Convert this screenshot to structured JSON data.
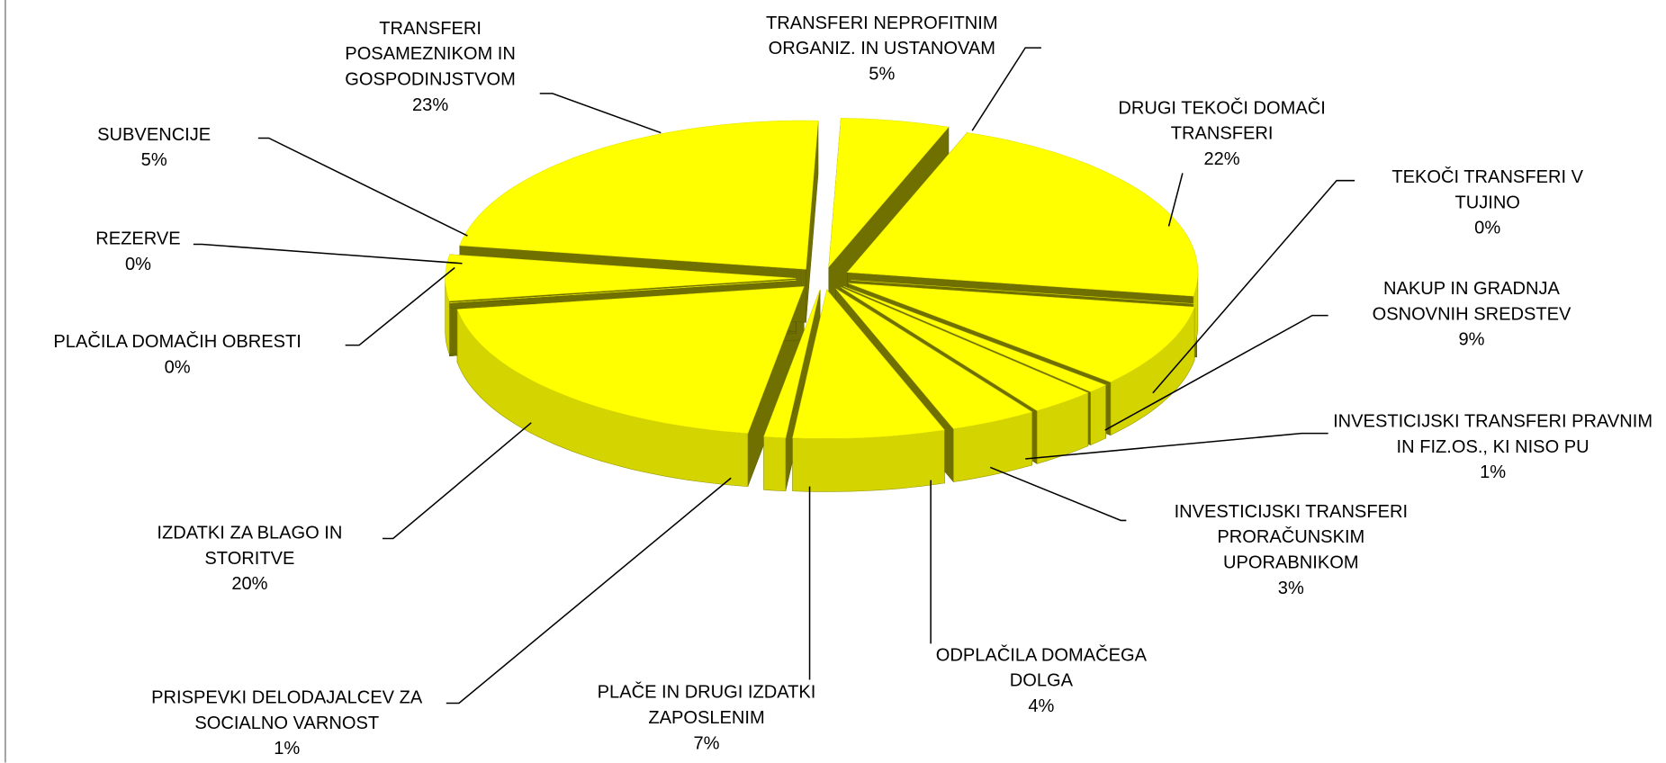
{
  "chart_data": {
    "type": "pie",
    "categories": [
      "TRANSFERI NEPROFITNIM ORGANIZ. IN USTANOVAM",
      "DRUGI TEKOČI DOMAČI TRANSFERI",
      "TEKOČI TRANSFERI V TUJINO",
      "NAKUP IN GRADNJA OSNOVNIH SREDSTEV",
      "INVESTICIJSKI TRANSFERI PRAVNIM IN FIZ.OS., KI NISO PU",
      "INVESTICIJSKI TRANSFERI PRORAČUNSKIM UPORABNIKOM",
      "ODPLAČILA DOMAČEGA DOLGA",
      "PLAČE IN DRUGI IZDATKI ZAPOSLENIM",
      "PRISPEVKI DELODAJALCEV ZA SOCIALNO VARNOST",
      "IZDATKI ZA BLAGO IN STORITVE",
      "PLAČILA DOMAČIH OBRESTI",
      "REZERVE",
      "SUBVENCIJE",
      "TRANSFERI POSAMEZNIKOM IN GOSPODINJSTVOM"
    ],
    "values": [
      5,
      22,
      0,
      9,
      1,
      3,
      4,
      7,
      1,
      20,
      0,
      0,
      5,
      23
    ],
    "value_labels": [
      "5%",
      "22%",
      "0%",
      "9%",
      "1%",
      "3%",
      "4%",
      "7%",
      "1%",
      "20%",
      "0%",
      "0%",
      "5%",
      "23%"
    ],
    "color": "#ffff00"
  }
}
